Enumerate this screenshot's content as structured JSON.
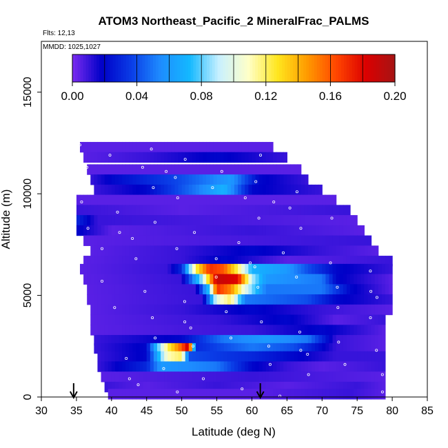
{
  "chart_data": {
    "type": "heatmap",
    "title": "ATOM3 Northeast_Pacific_2 MineralFrac_PALMS",
    "flights_label": "Flts: 12,13",
    "mmdd_label": "MMDD: 1025,1027",
    "xlabel": "Latitude (deg N)",
    "ylabel": "Altitude (m)",
    "xlim": [
      30,
      85
    ],
    "ylim": [
      0,
      17500
    ],
    "x_ticks": [
      "30",
      "35",
      "40",
      "45",
      "50",
      "55",
      "60",
      "65",
      "70",
      "75",
      "80",
      "85"
    ],
    "y_ticks": [
      "0",
      "5000",
      "10000",
      "15000"
    ],
    "colorbar": {
      "range": [
        0,
        0.2
      ],
      "tick_labels": [
        "0.00",
        "0.04",
        "0.08",
        "0.12",
        "0.16",
        "0.20"
      ],
      "tick_values": [
        0,
        0.04,
        0.08,
        0.12,
        0.16,
        0.2
      ],
      "colors": [
        "#7b2cf0",
        "#0000c8",
        "#0a3ce6",
        "#1e8cff",
        "#14b9ff",
        "#c8f0ff",
        "#ffffc8",
        "#ffe61e",
        "#ff9b00",
        "#ff4600",
        "#dc0000",
        "#a51414"
      ]
    },
    "arrows_latitude": [
      34.6,
      61.2
    ],
    "grid": false,
    "legend": "colorbar at top",
    "bands": [
      {
        "alt": 12300,
        "lat_start": 35.5,
        "lat_end": 63,
        "values": [
          [
            35.5,
            0.005
          ],
          [
            63,
            0.005
          ]
        ]
      },
      {
        "alt": 11800,
        "lat_start": 36,
        "lat_end": 65,
        "values": [
          [
            36,
            0.005
          ],
          [
            45,
            0.01
          ],
          [
            55,
            0.02
          ],
          [
            65,
            0.01
          ]
        ]
      },
      {
        "alt": 11200,
        "lat_start": 36.5,
        "lat_end": 67,
        "values": [
          [
            36.5,
            0.005
          ],
          [
            67,
            0.005
          ]
        ]
      },
      {
        "alt": 10700,
        "lat_start": 37,
        "lat_end": 68,
        "values": [
          [
            37,
            0.01
          ],
          [
            40,
            0.02
          ],
          [
            50,
            0.04
          ],
          [
            57,
            0.06
          ],
          [
            61,
            0.02
          ],
          [
            68,
            0.01
          ]
        ]
      },
      {
        "alt": 10200,
        "lat_start": 37.5,
        "lat_end": 70,
        "values": [
          [
            37.5,
            0.01
          ],
          [
            45,
            0.02
          ],
          [
            52,
            0.05
          ],
          [
            56,
            0.07
          ],
          [
            60,
            0.02
          ],
          [
            70,
            0.01
          ]
        ]
      },
      {
        "alt": 9700,
        "lat_start": 35,
        "lat_end": 72,
        "values": [
          [
            35,
            0.005
          ],
          [
            72,
            0.005
          ]
        ]
      },
      {
        "alt": 9200,
        "lat_start": 35,
        "lat_end": 74,
        "values": [
          [
            35,
            0.01
          ],
          [
            50,
            0.005
          ],
          [
            74,
            0.01
          ]
        ]
      },
      {
        "alt": 8700,
        "lat_start": 35,
        "lat_end": 75,
        "values": [
          [
            35,
            0.03
          ],
          [
            38,
            0.01
          ],
          [
            75,
            0.005
          ]
        ]
      },
      {
        "alt": 8200,
        "lat_start": 35,
        "lat_end": 76,
        "values": [
          [
            35,
            0.02
          ],
          [
            40,
            0.005
          ],
          [
            60,
            0.01
          ],
          [
            76,
            0.005
          ]
        ]
      },
      {
        "alt": 7700,
        "lat_start": 36,
        "lat_end": 77,
        "values": [
          [
            36,
            0.005
          ],
          [
            76,
            0.01
          ]
        ]
      },
      {
        "alt": 7200,
        "lat_start": 37,
        "lat_end": 78,
        "values": [
          [
            37,
            0.005
          ],
          [
            50,
            0.01
          ],
          [
            60,
            0.02
          ],
          [
            70,
            0.01
          ],
          [
            78,
            0.005
          ]
        ]
      },
      {
        "alt": 6700,
        "lat_start": 36,
        "lat_end": 80,
        "values": [
          [
            36,
            0.005
          ],
          [
            50,
            0.01
          ],
          [
            56,
            0.02
          ],
          [
            65,
            0.005
          ],
          [
            80,
            0.01
          ]
        ]
      },
      {
        "alt": 6300,
        "lat_start": 35.5,
        "lat_end": 80,
        "values": [
          [
            35.5,
            0.005
          ],
          [
            48,
            0.01
          ],
          [
            50,
            0.03
          ],
          [
            52,
            0.12
          ],
          [
            54,
            0.17
          ],
          [
            56,
            0.16
          ],
          [
            58,
            0.12
          ],
          [
            60,
            0.07
          ],
          [
            65,
            0.06
          ],
          [
            68,
            0.04
          ],
          [
            72,
            0.02
          ],
          [
            80,
            0.01
          ]
        ]
      },
      {
        "alt": 5800,
        "lat_start": 36,
        "lat_end": 80,
        "values": [
          [
            36,
            0.005
          ],
          [
            50,
            0.01
          ],
          [
            53,
            0.09
          ],
          [
            55,
            0.19
          ],
          [
            58,
            0.18
          ],
          [
            60,
            0.09
          ],
          [
            62,
            0.06
          ],
          [
            70,
            0.05
          ],
          [
            72,
            0.02
          ],
          [
            80,
            0.005
          ]
        ]
      },
      {
        "alt": 5300,
        "lat_start": 36.5,
        "lat_end": 80,
        "values": [
          [
            36.5,
            0.005
          ],
          [
            52,
            0.01
          ],
          [
            54,
            0.08
          ],
          [
            55,
            0.17
          ],
          [
            57,
            0.15
          ],
          [
            59,
            0.1
          ],
          [
            62,
            0.05
          ],
          [
            70,
            0.05
          ],
          [
            74,
            0.02
          ],
          [
            80,
            0.005
          ]
        ]
      },
      {
        "alt": 4800,
        "lat_start": 36.5,
        "lat_end": 80,
        "values": [
          [
            36.5,
            0.005
          ],
          [
            53,
            0.01
          ],
          [
            55,
            0.1
          ],
          [
            57,
            0.12
          ],
          [
            59,
            0.05
          ],
          [
            68,
            0.04
          ],
          [
            72,
            0.02
          ],
          [
            80,
            0.01
          ]
        ]
      },
      {
        "alt": 4300,
        "lat_start": 37,
        "lat_end": 80,
        "values": [
          [
            37,
            0.005
          ],
          [
            50,
            0.01
          ],
          [
            60,
            0.02
          ],
          [
            70,
            0.01
          ],
          [
            80,
            0.005
          ]
        ]
      },
      {
        "alt": 3800,
        "lat_start": 37,
        "lat_end": 79,
        "values": [
          [
            37,
            0.005
          ],
          [
            55,
            0.01
          ],
          [
            65,
            0.02
          ],
          [
            72,
            0.005
          ],
          [
            79,
            0.01
          ]
        ]
      },
      {
        "alt": 3300,
        "lat_start": 37,
        "lat_end": 79,
        "values": [
          [
            37,
            0.005
          ],
          [
            60,
            0.01
          ],
          [
            70,
            0.02
          ],
          [
            79,
            0.005
          ]
        ]
      },
      {
        "alt": 2800,
        "lat_start": 37.5,
        "lat_end": 79,
        "values": [
          [
            37.5,
            0.01
          ],
          [
            50,
            0.02
          ],
          [
            56,
            0.05
          ],
          [
            62,
            0.06
          ],
          [
            68,
            0.05
          ],
          [
            72,
            0.01
          ],
          [
            79,
            0.005
          ]
        ]
      },
      {
        "alt": 2400,
        "lat_start": 37.5,
        "lat_end": 79,
        "values": [
          [
            37.5,
            0.01
          ],
          [
            45,
            0.02
          ],
          [
            46,
            0.06
          ],
          [
            48,
            0.12
          ],
          [
            50,
            0.16
          ],
          [
            51,
            0.19
          ],
          [
            52,
            0.03
          ],
          [
            60,
            0.05
          ],
          [
            66,
            0.04
          ],
          [
            72,
            0.01
          ],
          [
            79,
            0.005
          ]
        ]
      },
      {
        "alt": 2000,
        "lat_start": 38,
        "lat_end": 79,
        "values": [
          [
            38,
            0.01
          ],
          [
            45,
            0.02
          ],
          [
            46,
            0.05
          ],
          [
            48,
            0.11
          ],
          [
            50,
            0.12
          ],
          [
            51,
            0.04
          ],
          [
            60,
            0.03
          ],
          [
            72,
            0.01
          ],
          [
            79,
            0.01
          ]
        ]
      },
      {
        "alt": 1500,
        "lat_start": 38,
        "lat_end": 79,
        "values": [
          [
            38,
            0.01
          ],
          [
            45,
            0.03
          ],
          [
            47,
            0.06
          ],
          [
            55,
            0.05
          ],
          [
            60,
            0.02
          ],
          [
            65,
            0.01
          ],
          [
            70,
            0.005
          ],
          [
            79,
            0.01
          ]
        ]
      },
      {
        "alt": 1000,
        "lat_start": 38.5,
        "lat_end": 79,
        "values": [
          [
            38.5,
            0.005
          ],
          [
            60,
            0.01
          ],
          [
            79,
            0.005
          ]
        ]
      },
      {
        "alt": 500,
        "lat_start": 39,
        "lat_end": 79,
        "values": [
          [
            39,
            0.01
          ],
          [
            45,
            0.005
          ],
          [
            55,
            0.01
          ],
          [
            65,
            0.005
          ],
          [
            75,
            0.01
          ],
          [
            79,
            0.005
          ]
        ]
      },
      {
        "alt": 150,
        "lat_start": 39.5,
        "lat_end": 79,
        "values": [
          [
            39.5,
            0.005
          ],
          [
            60,
            0.005
          ],
          [
            74,
            0.01
          ],
          [
            79,
            0.005
          ]
        ]
      }
    ]
  }
}
